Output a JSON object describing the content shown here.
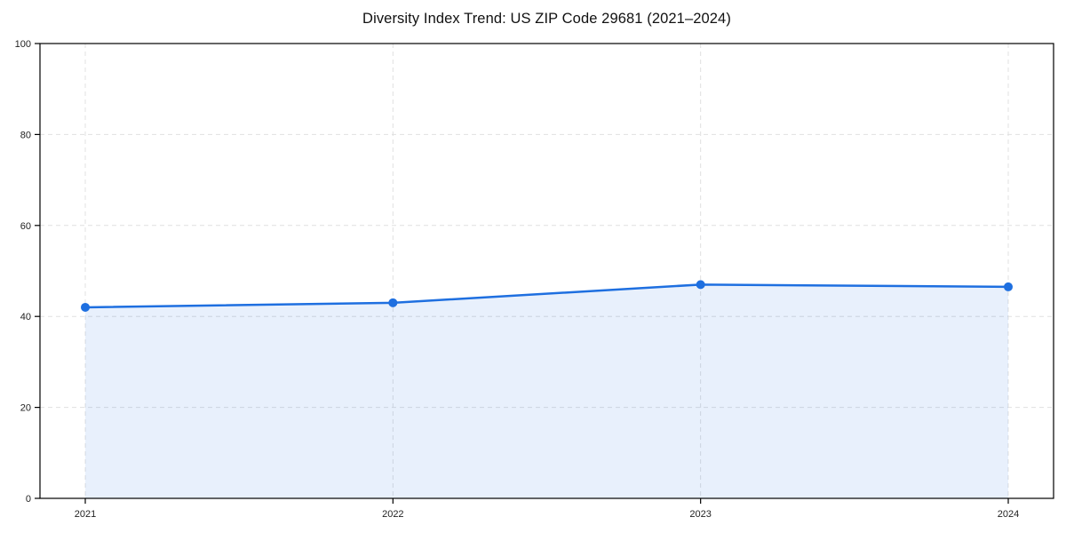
{
  "chart_data": {
    "type": "area",
    "title": "Diversity Index Trend: US ZIP Code 29681 (2021–2024)",
    "categories": [
      "2021",
      "2022",
      "2023",
      "2024"
    ],
    "series": [
      {
        "name": "Diversity Index",
        "values": [
          42,
          43,
          47,
          46.5
        ]
      }
    ],
    "xlabel": "",
    "ylabel": "",
    "ylim": [
      0,
      100
    ],
    "yticks": [
      0,
      20,
      40,
      60,
      80,
      100
    ],
    "grid": "dashed",
    "legend": "none",
    "colors": {
      "line": "#1e6fe0",
      "marker": "#1e6fe0",
      "fill": "#1e6fe0",
      "fill_opacity": 0.1,
      "grid": "#e0e0e0",
      "spine": "#000000",
      "tick_label": "#222222"
    }
  }
}
